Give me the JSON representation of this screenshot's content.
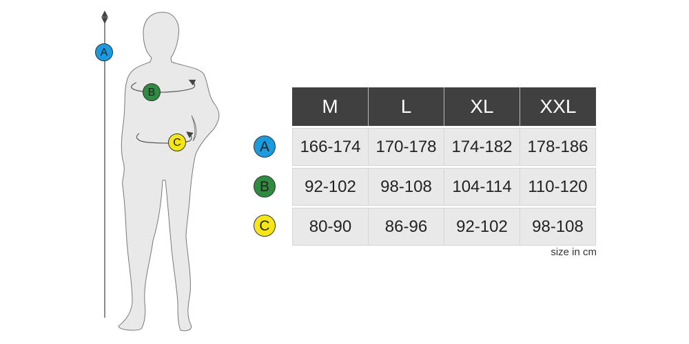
{
  "sizes": [
    "M",
    "L",
    "XL",
    "XXL"
  ],
  "rows": [
    {
      "label": "A",
      "color": "#1a9be0",
      "values": [
        "166-174",
        "170-178",
        "174-182",
        "178-186"
      ]
    },
    {
      "label": "B",
      "color": "#2e8b3f",
      "values": [
        "92-102",
        "98-108",
        "104-114",
        "110-120"
      ]
    },
    {
      "label": "C",
      "color": "#f5e614",
      "values": [
        "80-90",
        "86-96",
        "92-102",
        "98-108"
      ]
    }
  ],
  "note": "size in cm"
}
